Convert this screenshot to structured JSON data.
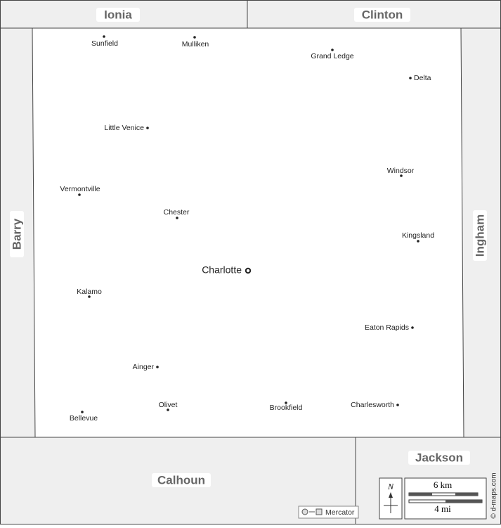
{
  "counties": {
    "north_west": "Ionia",
    "north_east": "Clinton",
    "west": "Barry",
    "east": "Ingham",
    "south": "Calhoun",
    "south_east": "Jackson"
  },
  "seat": "Charlotte",
  "places": [
    "Sunfield",
    "Mulliken",
    "Grand Ledge",
    "Delta",
    "Little Venice",
    "Windsor",
    "Vermontville",
    "Chester",
    "Kingsland",
    "Kalamo",
    "Eaton Rapids",
    "Ainger",
    "Olivet",
    "Brookfield",
    "Charlesworth",
    "Bellevue"
  ],
  "legend": {
    "north": "N",
    "scale_km": "6 km",
    "scale_mi": "4 mi",
    "projection": "Mercator"
  },
  "credit": "© d-maps.com"
}
